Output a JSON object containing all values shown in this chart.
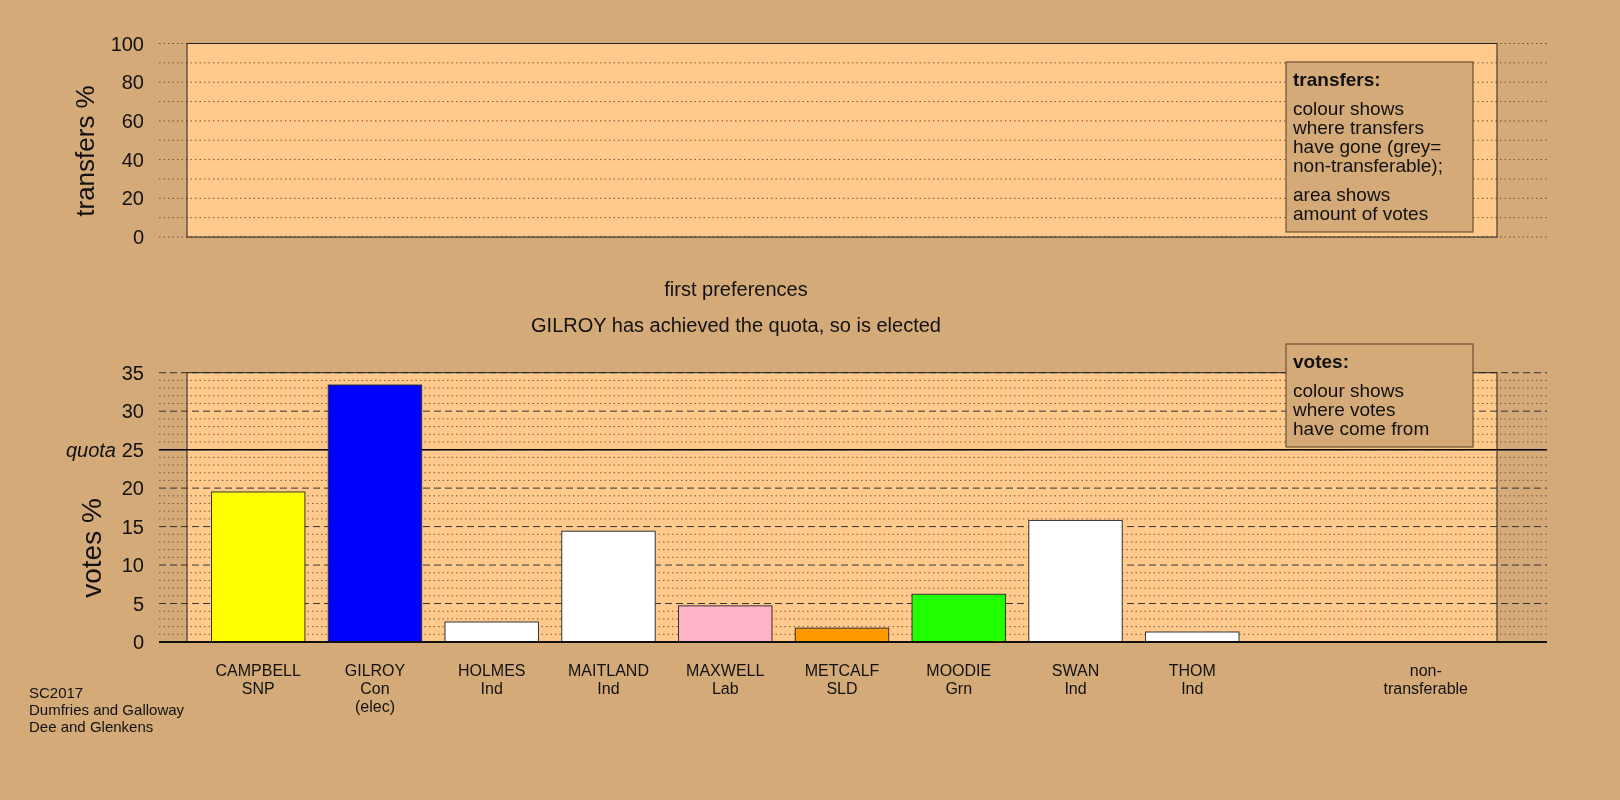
{
  "chart_data": [
    {
      "type": "bar",
      "categories": [
        null,
        null,
        null,
        null,
        null,
        null,
        null,
        null,
        null,
        null,
        null
      ],
      "values": [
        null,
        null,
        null,
        null,
        null,
        null,
        null,
        null,
        null,
        null,
        null
      ],
      "ylabel": "transfers %",
      "ylim": [
        0,
        100
      ],
      "yticks": [
        0,
        {
          "value": 10,
          "label": null
        },
        20,
        {
          "value": 30,
          "label": null
        },
        40,
        {
          "value": 50,
          "label": null
        },
        60,
        {
          "value": 70,
          "label": null
        },
        80,
        {
          "value": 90,
          "label": null
        },
        100
      ],
      "grid": "y",
      "tick_labels": "y",
      "annotations": [
        "transfers:",
        "colour shows\nwhere transfers\nhave gone (grey=\nnon-transferable);",
        "area shows\namount of votes"
      ]
    },
    {
      "type": "bar",
      "title": "first preferences",
      "subtitle": "GILROY has achieved the quota, so is elected",
      "categories": [
        "CAMPBELL\nSNP",
        "GILROY\nCon\n(elec)",
        "HOLMES\nInd",
        "MAITLAND\nInd",
        "MAXWELL\nLab",
        "METCALF\nSLD",
        "MOODIE\nGrn",
        "SWAN\nInd",
        "THOM\nInd",
        null,
        "non-\ntransferable"
      ],
      "values": [
        19.5,
        33.4,
        2.6,
        14.4,
        4.7,
        1.8,
        6.2,
        15.8,
        1.3,
        null,
        null
      ],
      "colors": [
        "#ffff00",
        "#0000ff",
        "#ffffff",
        "#ffffff",
        "#ffb3c6",
        "#ff9900",
        "#22ff00",
        "#ffffff",
        "#ffffff",
        null,
        null
      ],
      "ylabel": "votes %",
      "ylim": [
        0,
        35
      ],
      "yticks": [
        0,
        {
          "value": 1,
          "label": null
        },
        {
          "value": 2,
          "label": null
        },
        {
          "value": 3,
          "label": null
        },
        {
          "value": 4,
          "label": null
        },
        5,
        {
          "value": 6,
          "label": null
        },
        {
          "value": 7,
          "label": null
        },
        {
          "value": 8,
          "label": null
        },
        {
          "value": 9,
          "label": null
        },
        10,
        {
          "value": 11,
          "label": null
        },
        {
          "value": 12,
          "label": null
        },
        {
          "value": 13,
          "label": null
        },
        {
          "value": 14,
          "label": null
        },
        15,
        {
          "value": 16,
          "label": null
        },
        {
          "value": 17,
          "label": null
        },
        {
          "value": 18,
          "label": null
        },
        {
          "value": 19,
          "label": null
        },
        20,
        {
          "value": 21,
          "label": null
        },
        {
          "value": 22,
          "label": null
        },
        {
          "value": 23,
          "label": null
        },
        {
          "value": 24,
          "label": null
        },
        25,
        {
          "value": 26,
          "label": null
        },
        {
          "value": 27,
          "label": null
        },
        {
          "value": 28,
          "label": null
        },
        {
          "value": 29,
          "label": null
        },
        30,
        {
          "value": 31,
          "label": null
        },
        {
          "value": 32,
          "label": null
        },
        {
          "value": 33,
          "label": null
        },
        {
          "value": 34,
          "label": null
        },
        35
      ],
      "grid": "y",
      "ref_lines": [
        {
          "axis": "y",
          "value": 25,
          "label": "quota",
          "color": "#000000"
        }
      ],
      "annotations": [
        "votes:",
        "colour shows\nwhere votes\nhave come from",
        "SC2017\nDumfries and Galloway\nDee and Glenkens"
      ]
    }
  ]
}
